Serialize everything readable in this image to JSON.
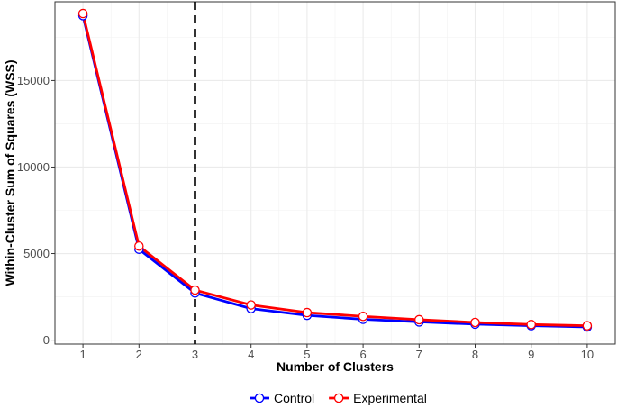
{
  "chart_data": {
    "type": "line",
    "title": "",
    "xlabel": "Number of Clusters",
    "ylabel": "Within-Cluster Sum of Squares (WSS)",
    "x": [
      1,
      2,
      3,
      4,
      5,
      6,
      7,
      8,
      9,
      10
    ],
    "xlim": [
      0.5,
      10.5
    ],
    "ylim": [
      -230,
      19550
    ],
    "x_ticks": [
      "1",
      "2",
      "3",
      "4",
      "5",
      "6",
      "7",
      "8",
      "9",
      "10"
    ],
    "y_ticks": [
      0,
      5000,
      10000,
      15000
    ],
    "y_tick_labels": [
      "0",
      "5000",
      "10000",
      "15000"
    ],
    "grid": true,
    "legend_position": "bottom",
    "vline": {
      "x": 3,
      "style": "dashed",
      "color": "#000000"
    },
    "series": [
      {
        "name": "Control",
        "color": "#0000ff",
        "values": [
          18750,
          5250,
          2720,
          1820,
          1430,
          1200,
          1050,
          920,
          830,
          760
        ]
      },
      {
        "name": "Experimental",
        "color": "#ff0000",
        "values": [
          18870,
          5430,
          2890,
          2030,
          1590,
          1370,
          1180,
          1020,
          900,
          830
        ]
      }
    ]
  }
}
